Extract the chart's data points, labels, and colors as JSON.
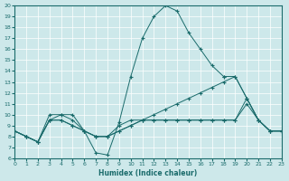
{
  "xlabel": "Humidex (Indice chaleur)",
  "xlim": [
    0,
    23
  ],
  "ylim": [
    6,
    20
  ],
  "xticks": [
    0,
    1,
    2,
    3,
    4,
    5,
    6,
    7,
    8,
    9,
    10,
    11,
    12,
    13,
    14,
    15,
    16,
    17,
    18,
    19,
    20,
    21,
    22,
    23
  ],
  "yticks": [
    6,
    7,
    8,
    9,
    10,
    11,
    12,
    13,
    14,
    15,
    16,
    17,
    18,
    19,
    20
  ],
  "bg_color": "#cde8ea",
  "line_color": "#1a6b6b",
  "line1_x": [
    0,
    1,
    2,
    3,
    4,
    5,
    6,
    7,
    8,
    9,
    10,
    11,
    12,
    13,
    14,
    15,
    16,
    17,
    18,
    19,
    20,
    21,
    22,
    23
  ],
  "line1_y": [
    8.5,
    8.0,
    7.5,
    10.0,
    10.0,
    10.0,
    8.5,
    6.5,
    6.3,
    9.3,
    13.5,
    17.0,
    19.0,
    20.0,
    19.5,
    17.5,
    16.0,
    14.5,
    13.5,
    null,
    null,
    null,
    null,
    null
  ],
  "line2_x": [
    0,
    1,
    2,
    3,
    4,
    5,
    6,
    7,
    8,
    9,
    10,
    11,
    12,
    13,
    14,
    15,
    16,
    17,
    18,
    19,
    20,
    21,
    22,
    23
  ],
  "line2_y": [
    8.5,
    8.0,
    7.5,
    9.5,
    10.0,
    9.5,
    8.5,
    8.0,
    8.0,
    9.0,
    9.5,
    9.5,
    9.5,
    9.5,
    9.5,
    9.5,
    9.5,
    9.5,
    9.5,
    9.5,
    11.0,
    9.5,
    8.5,
    8.5
  ],
  "line3_x": [
    0,
    1,
    2,
    3,
    4,
    5,
    6,
    7,
    8,
    9,
    10,
    11,
    12,
    13,
    14,
    15,
    16,
    17,
    18,
    19,
    20,
    21,
    22,
    23
  ],
  "line3_y": [
    8.5,
    8.0,
    7.5,
    9.5,
    9.5,
    9.0,
    8.5,
    8.0,
    8.0,
    8.5,
    9.0,
    9.5,
    10.0,
    10.5,
    11.0,
    11.5,
    12.0,
    12.5,
    13.0,
    13.5,
    11.5,
    9.5,
    8.5,
    8.5
  ],
  "line4_x": [
    0,
    1,
    2,
    3,
    4,
    5,
    6,
    7,
    8,
    9,
    10,
    11,
    12,
    13,
    14,
    15,
    16,
    17,
    18,
    19,
    20,
    21,
    22,
    23
  ],
  "line4_y": [
    8.5,
    8.0,
    7.5,
    9.5,
    9.5,
    9.0,
    8.5,
    8.0,
    8.0,
    8.5,
    9.0,
    9.5,
    9.5,
    9.5,
    9.5,
    9.5,
    9.5,
    9.5,
    9.5,
    9.5,
    11.5,
    9.5,
    8.5,
    8.5
  ],
  "line1b_x": [
    18,
    19,
    20,
    21,
    22,
    23
  ],
  "line1b_y": [
    13.5,
    13.5,
    11.5,
    9.5,
    8.5,
    8.5
  ]
}
